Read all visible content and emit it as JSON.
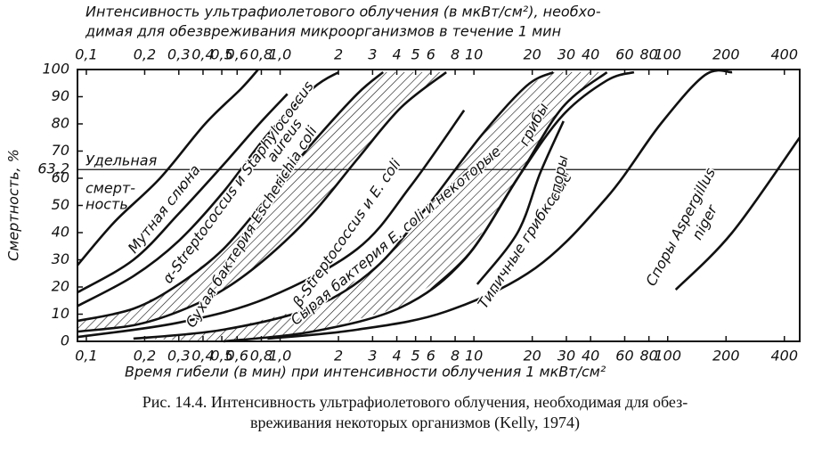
{
  "chart_data": {
    "type": "line",
    "top_title": [
      "Интенсивность ультрафиолетового облучения (в мкВт/см²), необхо-",
      "димая для обезвреживания микроорганизмов в течение 1 мин"
    ],
    "xlabel": "Время гибели (в мин) при интенсивности облучения 1 мкВт/см²",
    "ylabel": "Смертность, %",
    "caption": [
      "Рис. 14.4. Интенсивность ультрафиолетового облучения, необходимая для обез-",
      "вреживания некоторых организмов (Kelly, 1974)"
    ],
    "log_x": true,
    "xlim": [
      0.09,
      480
    ],
    "xticks": [
      {
        "value": 0.1,
        "label": "0,1"
      },
      {
        "value": 0.2,
        "label": "0,2"
      },
      {
        "value": 0.3,
        "label": "0,3"
      },
      {
        "value": 0.4,
        "label": "0,4"
      },
      {
        "value": 0.5,
        "label": "0,5"
      },
      {
        "value": 0.6,
        "label": "0,6"
      },
      {
        "value": 0.8,
        "label": "0,8"
      },
      {
        "value": 1,
        "label": "1,0"
      },
      2,
      3,
      4,
      5,
      6,
      8,
      10,
      20,
      30,
      40,
      60,
      80,
      100,
      200,
      400
    ],
    "ylim": [
      0,
      100
    ],
    "yticks": [
      0,
      10,
      20,
      30,
      40,
      50,
      60,
      {
        "value": 63.2,
        "label": "63,2"
      },
      70,
      80,
      90,
      100
    ],
    "reference_text": [
      "Удельная",
      "смерт-",
      "ность"
    ],
    "color": "#111111",
    "bands": [
      [
        3,
        4
      ],
      [
        6,
        7
      ]
    ],
    "annotations": [
      "Мутная слюна",
      "α-Streptococcus и Staphylococcus",
      "aureus",
      "Сухая бактерия Escherichia coli",
      "β-Streptococcus и E. coli",
      "Сырая бактерия E. coli и некоторые",
      "грибы",
      "Типичные грибковые",
      "споры",
      "Споры Aspergillus",
      "niger"
    ],
    "series": [
      {
        "x": [
          0.09,
          0.14,
          0.24,
          0.41,
          0.63,
          0.77
        ],
        "values": [
          28,
          44,
          60,
          80,
          93,
          100
        ]
      },
      {
        "x": [
          0.09,
          0.175,
          0.3,
          0.51,
          0.78,
          1.09
        ],
        "values": [
          18,
          30,
          47,
          65,
          80,
          91
        ]
      },
      {
        "x": [
          0.09,
          0.175,
          0.3,
          0.51,
          0.86,
          1.47,
          2.0
        ],
        "values": [
          13,
          24,
          37,
          55,
          76,
          93,
          99
        ]
      },
      {
        "x": [
          0.09,
          0.175,
          0.3,
          0.51,
          0.86,
          1.47,
          2.5,
          3.4
        ],
        "values": [
          7.5,
          12,
          21,
          34,
          53,
          73,
          91,
          99
        ]
      },
      {
        "x": [
          0.09,
          0.175,
          0.3,
          0.51,
          0.86,
          1.47,
          2.5,
          4.2,
          7.2
        ],
        "values": [
          3.6,
          5.9,
          11,
          19,
          31,
          47,
          67,
          86,
          99
        ]
      },
      {
        "x": [
          0.09,
          0.3,
          0.86,
          2.5,
          4.7,
          8.9
        ],
        "values": [
          1.6,
          6.9,
          16,
          34,
          57,
          85
        ]
      },
      {
        "x": [
          0.175,
          0.51,
          1.47,
          3.1,
          5.8,
          11,
          18.7,
          25.7
        ],
        "values": [
          1,
          4.3,
          12.5,
          27,
          50,
          76,
          94,
          99
        ]
      },
      {
        "x": [
          0.51,
          1.47,
          4.2,
          8.9,
          16.8,
          28.6,
          48.6
        ],
        "values": [
          0,
          3.6,
          12.5,
          30,
          60,
          86,
          99
        ]
      },
      {
        "x": [
          6,
          9.9,
          16.8,
          28.6,
          48.6,
          67
        ],
        "values": [
          19,
          34,
          60,
          83,
          96,
          99
        ]
      },
      {
        "x": [
          10.4,
          16.8,
          22,
          29
        ],
        "values": [
          21,
          40,
          62,
          81
        ]
      },
      {
        "x": [
          0.86,
          2.5,
          7.2,
          20.8,
          48.6,
          92,
          156,
          215
        ],
        "values": [
          1,
          4.3,
          11,
          27,
          53,
          80,
          98,
          99
        ]
      },
      {
        "x": [
          110,
          215,
          480
        ],
        "values": [
          19,
          40,
          75
        ]
      }
    ]
  }
}
